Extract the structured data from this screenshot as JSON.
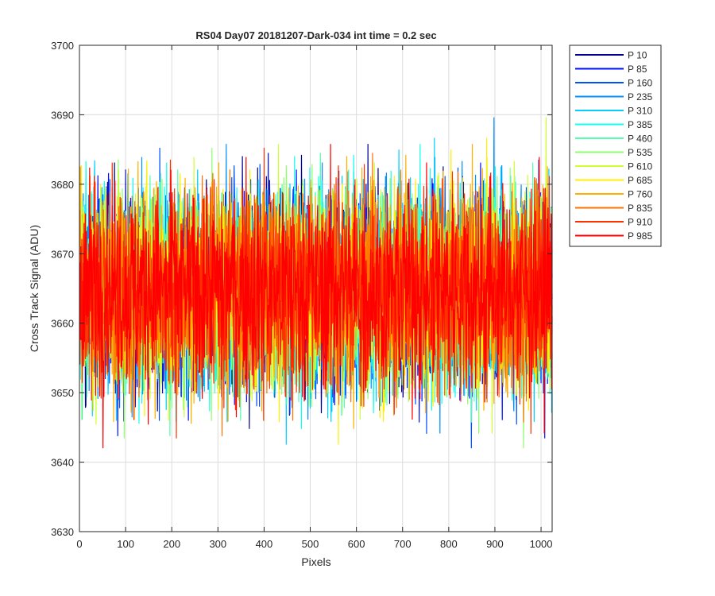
{
  "chart_data": {
    "type": "line",
    "title": "RS04 Day07 20181207-Dark-034 int time = 0.2 sec",
    "xlabel": "Pixels",
    "ylabel": "Cross Track Signal (ADU)",
    "xlim": [
      0,
      1024
    ],
    "ylim": [
      3630,
      3700
    ],
    "xticks": [
      0,
      100,
      200,
      300,
      400,
      500,
      600,
      700,
      800,
      900,
      1000
    ],
    "yticks": [
      3630,
      3640,
      3650,
      3660,
      3670,
      3680,
      3690,
      3700
    ],
    "grid": true,
    "legend_position": "outside-right-top",
    "mean_level": 3665,
    "series": [
      {
        "name": "P 10",
        "color": "#00008f"
      },
      {
        "name": "P 85",
        "color": "#0010ff"
      },
      {
        "name": "P 160",
        "color": "#0050ff"
      },
      {
        "name": "P 235",
        "color": "#0090ff"
      },
      {
        "name": "P 310",
        "color": "#00cfff"
      },
      {
        "name": "P 385",
        "color": "#10ffef"
      },
      {
        "name": "P 460",
        "color": "#50ffaf"
      },
      {
        "name": "P 535",
        "color": "#90ff6f"
      },
      {
        "name": "P 610",
        "color": "#cfff30"
      },
      {
        "name": "P 685",
        "color": "#ffef00"
      },
      {
        "name": "P 760",
        "color": "#ffaf00"
      },
      {
        "name": "P 835",
        "color": "#ff7000"
      },
      {
        "name": "P 910",
        "color": "#ff3000"
      },
      {
        "name": "P 985",
        "color": "#ff0000"
      }
    ]
  }
}
